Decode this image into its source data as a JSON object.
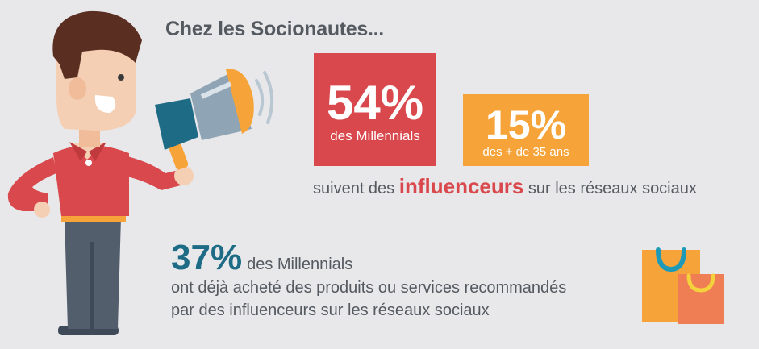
{
  "header": {
    "title": "Chez les Socionautes..."
  },
  "stats": [
    {
      "value": "54%",
      "label": "des Millennials",
      "color": "#d9484c"
    },
    {
      "value": "15%",
      "label": "des + de 35 ans",
      "color": "#f6a43a"
    }
  ],
  "influencer_line": {
    "prefix": "suivent des",
    "highlight": "influenceurs",
    "suffix": "sur les réseaux sociaux"
  },
  "purchase_stat": {
    "value": "37%",
    "label": "des Millennials",
    "line1": "ont déjà acheté des produits ou services recommandés",
    "line2": "par des influenceurs sur les réseaux sociaux"
  },
  "icons": [
    "man-with-megaphone-icon",
    "megaphone-icon",
    "sound-waves-icon",
    "shopping-bags-icon"
  ],
  "colors": {
    "red": "#d9484c",
    "orange": "#f6a43a",
    "teal": "#1e6b86",
    "text": "#555a61"
  }
}
